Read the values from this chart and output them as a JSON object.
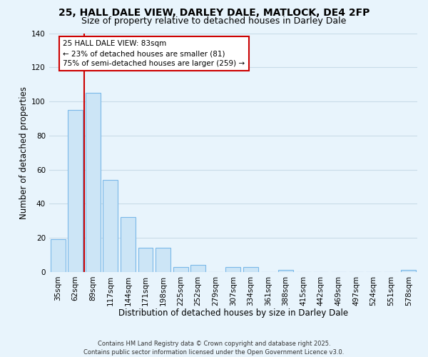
{
  "title": "25, HALL DALE VIEW, DARLEY DALE, MATLOCK, DE4 2FP",
  "subtitle": "Size of property relative to detached houses in Darley Dale",
  "xlabel": "Distribution of detached houses by size in Darley Dale",
  "ylabel": "Number of detached properties",
  "bar_labels": [
    "35sqm",
    "62sqm",
    "89sqm",
    "117sqm",
    "144sqm",
    "171sqm",
    "198sqm",
    "225sqm",
    "252sqm",
    "279sqm",
    "307sqm",
    "334sqm",
    "361sqm",
    "388sqm",
    "415sqm",
    "442sqm",
    "469sqm",
    "497sqm",
    "524sqm",
    "551sqm",
    "578sqm"
  ],
  "bar_values": [
    19,
    95,
    105,
    54,
    32,
    14,
    14,
    3,
    4,
    0,
    3,
    3,
    0,
    1,
    0,
    0,
    0,
    0,
    0,
    0,
    1
  ],
  "bar_color": "#cce5f6",
  "bar_edge_color": "#7ab8e8",
  "vline_x": 1.5,
  "vline_color": "#cc0000",
  "ylim": [
    0,
    140
  ],
  "yticks": [
    0,
    20,
    40,
    60,
    80,
    100,
    120,
    140
  ],
  "annotation_title": "25 HALL DALE VIEW: 83sqm",
  "annotation_line1": "← 23% of detached houses are smaller (81)",
  "annotation_line2": "75% of semi-detached houses are larger (259) →",
  "annotation_box_color": "#ffffff",
  "annotation_box_edge": "#cc0000",
  "background_color": "#e8f4fc",
  "grid_color": "#c8dce8",
  "footer_line1": "Contains HM Land Registry data © Crown copyright and database right 2025.",
  "footer_line2": "Contains public sector information licensed under the Open Government Licence v3.0.",
  "title_fontsize": 10,
  "subtitle_fontsize": 9,
  "xlabel_fontsize": 8.5,
  "ylabel_fontsize": 8.5,
  "annotation_fontsize": 7.5,
  "footer_fontsize": 6.0,
  "tick_fontsize": 7.5,
  "ytick_fontsize": 7.5
}
